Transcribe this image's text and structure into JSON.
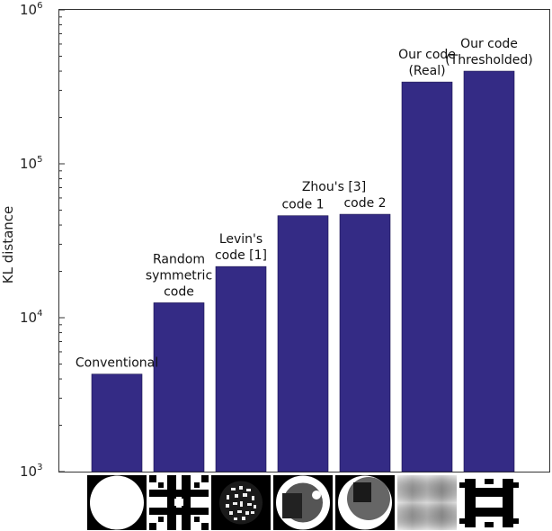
{
  "chart_data": {
    "type": "bar",
    "ylabel": "KL distance",
    "yscale": "log",
    "ylim": [
      1000,
      1000000
    ],
    "ytick_labels": [
      {
        "value": 1000,
        "base": "10",
        "exp": "3"
      },
      {
        "value": 10000,
        "base": "10",
        "exp": "4"
      },
      {
        "value": 100000,
        "base": "10",
        "exp": "5"
      },
      {
        "value": 1000000,
        "base": "10",
        "exp": "6"
      }
    ],
    "bar_color": "#342b85",
    "grid": false,
    "categories": [
      {
        "lines": [
          "Conventional"
        ]
      },
      {
        "lines": [
          "Random",
          "symmetric",
          "code"
        ]
      },
      {
        "lines": [
          "Levin's",
          "code [1]"
        ]
      },
      {
        "lines": [
          "code 1"
        ]
      },
      {
        "lines": [
          "code 2"
        ]
      },
      {
        "lines": [
          "Our code",
          "(Real)"
        ]
      },
      {
        "lines": [
          "Our code",
          "(Thresholded)"
        ]
      }
    ],
    "shared_label": "Zhou's [3]",
    "values": [
      4300,
      12500,
      21500,
      46000,
      47000,
      340000,
      400000
    ],
    "code_thumbnails": [
      "disk",
      "random-grid",
      "levin-spots",
      "zhou-1",
      "zhou-2",
      "real-blur",
      "thresholded"
    ]
  }
}
